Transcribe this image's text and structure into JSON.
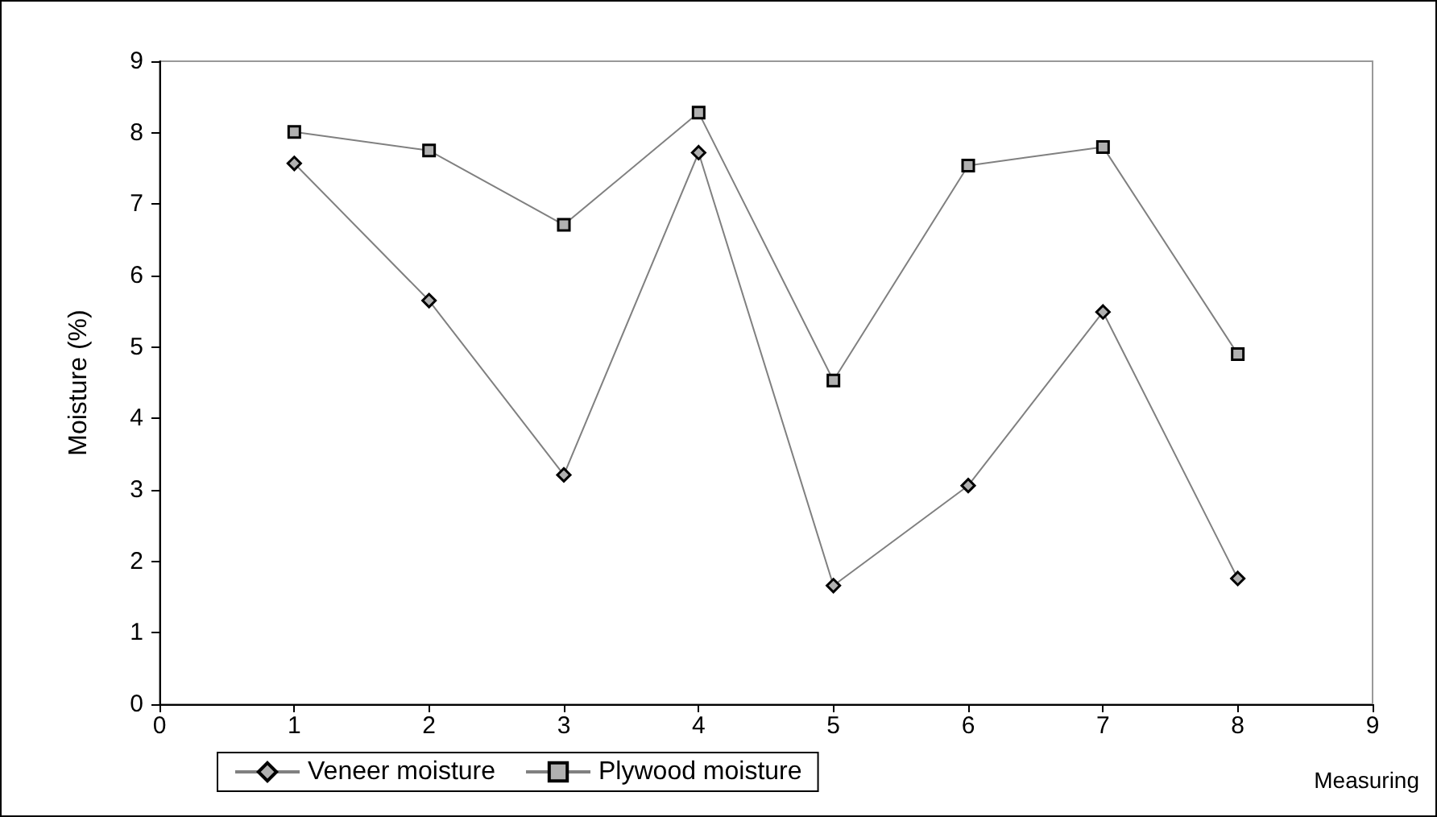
{
  "chart_data": {
    "type": "line",
    "xlabel": "Measuring",
    "ylabel": "Moisture (%)",
    "x": [
      1,
      2,
      3,
      4,
      5,
      6,
      7,
      8
    ],
    "series": [
      {
        "name": "Veneer moisture",
        "color": "#808080",
        "marker": "diamond",
        "values": [
          7.57,
          5.65,
          3.21,
          7.72,
          1.66,
          3.06,
          5.49,
          1.76
        ]
      },
      {
        "name": "Plywood moisture",
        "color": "#808080",
        "marker": "square",
        "values": [
          8.01,
          7.75,
          6.71,
          8.28,
          4.53,
          7.54,
          7.8,
          4.9
        ]
      }
    ],
    "xlim": [
      0,
      9
    ],
    "xticks": [
      0,
      1,
      2,
      3,
      4,
      5,
      6,
      7,
      8,
      9
    ],
    "ylim": [
      0,
      9
    ],
    "yticks": [
      0,
      1,
      2,
      3,
      4,
      5,
      6,
      7,
      8,
      9
    ],
    "grid": false,
    "legend": "bottom",
    "line_style": "solid"
  }
}
